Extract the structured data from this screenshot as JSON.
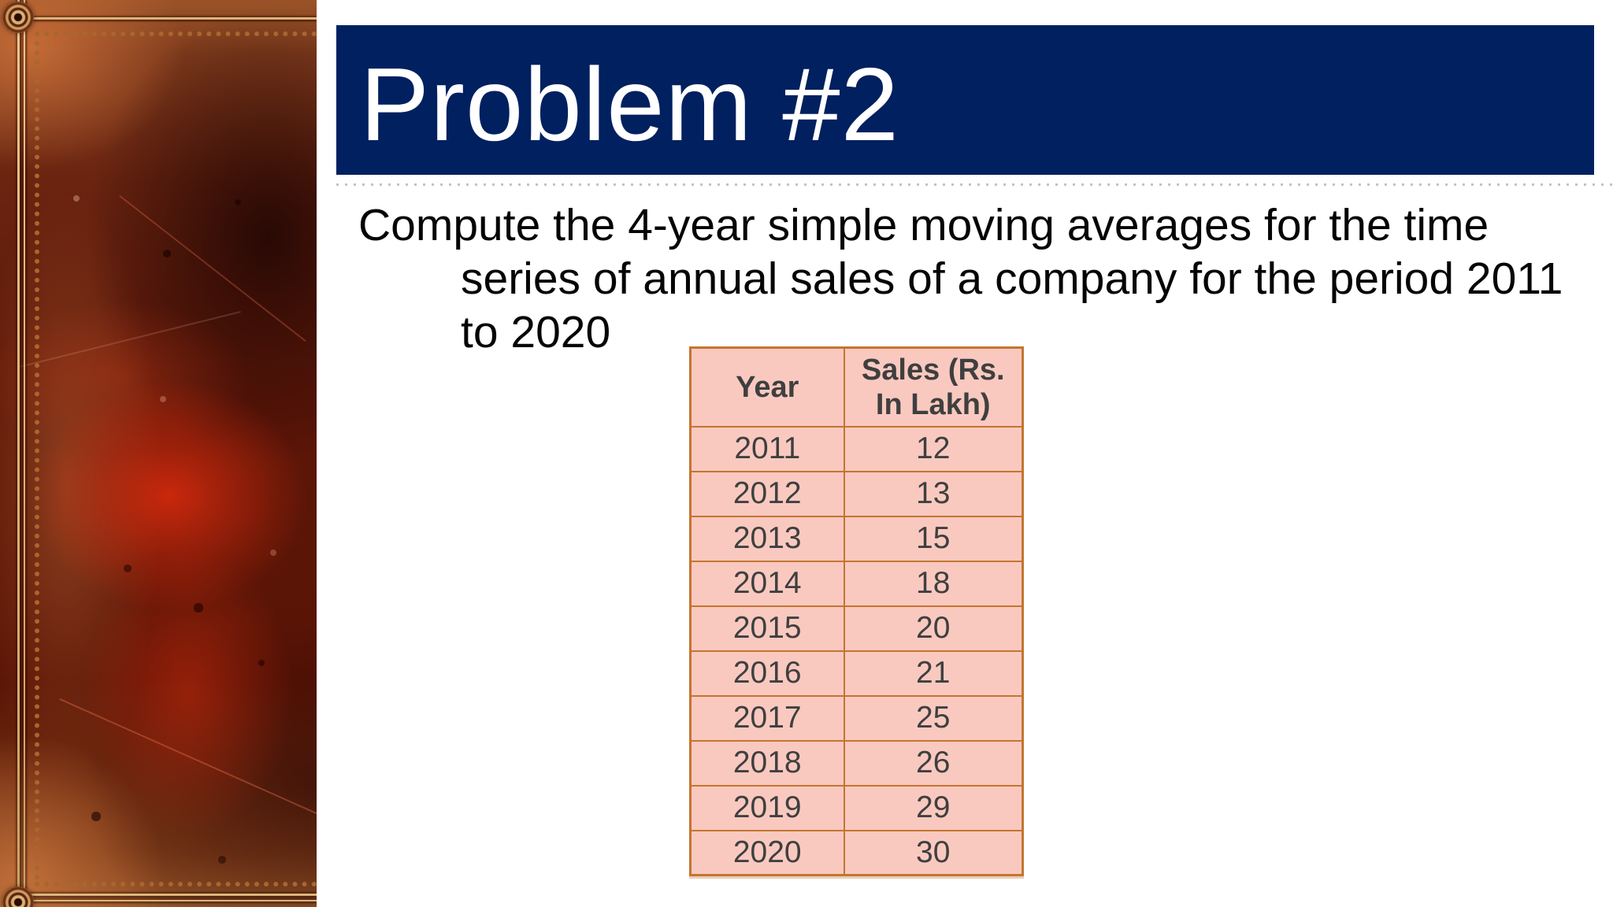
{
  "slide": {
    "title": "Problem #2",
    "body_lines": [
      "Compute the 4-year simple moving averages for the time",
      "series of annual sales of a company for the period 2011",
      "to 2020"
    ]
  },
  "table": {
    "headers": [
      "Year",
      "Sales (Rs. In Lakh)"
    ],
    "rows": [
      {
        "year": "2011",
        "sales": "12"
      },
      {
        "year": "2012",
        "sales": "13"
      },
      {
        "year": "2013",
        "sales": "15"
      },
      {
        "year": "2014",
        "sales": "18"
      },
      {
        "year": "2015",
        "sales": "20"
      },
      {
        "year": "2016",
        "sales": "21"
      },
      {
        "year": "2017",
        "sales": "25"
      },
      {
        "year": "2018",
        "sales": "26"
      },
      {
        "year": "2019",
        "sales": "29"
      },
      {
        "year": "2020",
        "sales": "30"
      }
    ]
  },
  "colors": {
    "title_bar": "#002060",
    "title_text": "#ffffff",
    "table_cell_bg": "#f9c9c0",
    "table_border": "#c4752f",
    "table_text": "#3f3f3f",
    "body_text": "#050505"
  },
  "decor": {
    "left_panel": "red-leather-book-cover-texture"
  }
}
